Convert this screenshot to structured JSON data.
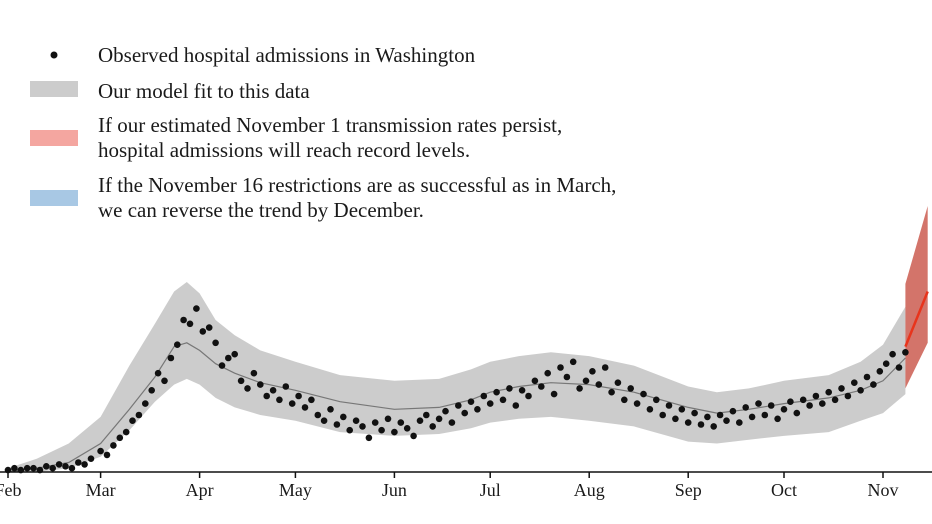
{
  "chart_data": {
    "type": "scatter",
    "title": "",
    "xlabel": "",
    "ylabel": "",
    "x_ticks": [
      "Feb",
      "Mar",
      "Apr",
      "May",
      "Jun",
      "Jul",
      "Aug",
      "Sep",
      "Oct",
      "Nov"
    ],
    "x_tick_dates": [
      "2020-02-01",
      "2020-03-01",
      "2020-04-01",
      "2020-05-01",
      "2020-06-01",
      "2020-07-01",
      "2020-08-01",
      "2020-09-01",
      "2020-10-01",
      "2020-11-01"
    ],
    "xlim": [
      "2020-02-01",
      "2020-11-15"
    ],
    "ylim": [
      0,
      100
    ],
    "y_axis_shown": false,
    "grid": false,
    "legend_position": "top-left",
    "colors": {
      "observed": "#111111",
      "model_band": "#cccccc",
      "model_line": "#777777",
      "red_band": "#c0392b",
      "red_line": "#e8341c",
      "red_legend": "#f4a6a0",
      "blue_legend": "#a8c8e4"
    },
    "legend": [
      {
        "key": "observed",
        "marker": "dot",
        "lines": [
          "Observed hospital admissions in Washington"
        ]
      },
      {
        "key": "model",
        "marker": "gray-patch",
        "lines": [
          "Our model fit to this data"
        ]
      },
      {
        "key": "persist",
        "marker": "red-patch",
        "lines": [
          "If our estimated November 1 transmission rates persist,",
          "hospital admissions will reach record levels."
        ]
      },
      {
        "key": "restrict",
        "marker": "blue-patch",
        "lines": [
          "If the November 16 restrictions are as successful as in March,",
          "we can reverse the trend by December."
        ]
      }
    ],
    "model_fit": [
      {
        "date": "2020-02-01",
        "y": 0
      },
      {
        "date": "2020-02-10",
        "y": 2
      },
      {
        "date": "2020-02-20",
        "y": 5
      },
      {
        "date": "2020-03-01",
        "y": 15
      },
      {
        "date": "2020-03-10",
        "y": 33
      },
      {
        "date": "2020-03-18",
        "y": 50
      },
      {
        "date": "2020-03-24",
        "y": 66
      },
      {
        "date": "2020-03-28",
        "y": 68
      },
      {
        "date": "2020-04-01",
        "y": 64
      },
      {
        "date": "2020-04-06",
        "y": 57
      },
      {
        "date": "2020-04-12",
        "y": 52
      },
      {
        "date": "2020-04-20",
        "y": 47
      },
      {
        "date": "2020-05-01",
        "y": 43
      },
      {
        "date": "2020-05-15",
        "y": 37
      },
      {
        "date": "2020-06-01",
        "y": 33
      },
      {
        "date": "2020-06-15",
        "y": 34
      },
      {
        "date": "2020-06-25",
        "y": 38
      },
      {
        "date": "2020-07-01",
        "y": 42
      },
      {
        "date": "2020-07-10",
        "y": 45
      },
      {
        "date": "2020-07-20",
        "y": 47
      },
      {
        "date": "2020-08-01",
        "y": 46
      },
      {
        "date": "2020-08-15",
        "y": 42
      },
      {
        "date": "2020-09-01",
        "y": 34
      },
      {
        "date": "2020-09-10",
        "y": 31
      },
      {
        "date": "2020-09-20",
        "y": 33
      },
      {
        "date": "2020-10-01",
        "y": 36
      },
      {
        "date": "2020-10-15",
        "y": 39
      },
      {
        "date": "2020-10-25",
        "y": 43
      },
      {
        "date": "2020-11-01",
        "y": 48
      },
      {
        "date": "2020-11-08",
        "y": 60
      }
    ],
    "model_band": [
      {
        "date": "2020-02-01",
        "lo": 0,
        "hi": 2
      },
      {
        "date": "2020-02-10",
        "lo": 0,
        "hi": 7
      },
      {
        "date": "2020-02-20",
        "lo": 2,
        "hi": 15
      },
      {
        "date": "2020-03-01",
        "lo": 8,
        "hi": 29
      },
      {
        "date": "2020-03-10",
        "lo": 22,
        "hi": 56
      },
      {
        "date": "2020-03-18",
        "lo": 37,
        "hi": 78
      },
      {
        "date": "2020-03-24",
        "lo": 46,
        "hi": 95
      },
      {
        "date": "2020-03-28",
        "lo": 49,
        "hi": 100
      },
      {
        "date": "2020-04-01",
        "lo": 46,
        "hi": 94
      },
      {
        "date": "2020-04-06",
        "lo": 39,
        "hi": 80
      },
      {
        "date": "2020-04-12",
        "lo": 34,
        "hi": 72
      },
      {
        "date": "2020-04-20",
        "lo": 30,
        "hi": 64
      },
      {
        "date": "2020-05-01",
        "lo": 27,
        "hi": 58
      },
      {
        "date": "2020-05-15",
        "lo": 21,
        "hi": 51
      },
      {
        "date": "2020-06-01",
        "lo": 19,
        "hi": 48
      },
      {
        "date": "2020-06-15",
        "lo": 20,
        "hi": 49
      },
      {
        "date": "2020-06-25",
        "lo": 23,
        "hi": 54
      },
      {
        "date": "2020-07-01",
        "lo": 26,
        "hi": 58
      },
      {
        "date": "2020-07-10",
        "lo": 28,
        "hi": 61
      },
      {
        "date": "2020-07-20",
        "lo": 29,
        "hi": 63
      },
      {
        "date": "2020-08-01",
        "lo": 27,
        "hi": 61
      },
      {
        "date": "2020-08-15",
        "lo": 24,
        "hi": 56
      },
      {
        "date": "2020-09-01",
        "lo": 16,
        "hi": 45
      },
      {
        "date": "2020-09-10",
        "lo": 15,
        "hi": 42
      },
      {
        "date": "2020-09-20",
        "lo": 17,
        "hi": 44
      },
      {
        "date": "2020-10-01",
        "lo": 19,
        "hi": 48
      },
      {
        "date": "2020-10-15",
        "lo": 21,
        "hi": 51
      },
      {
        "date": "2020-10-25",
        "lo": 27,
        "hi": 58
      },
      {
        "date": "2020-11-01",
        "lo": 31,
        "hi": 67
      },
      {
        "date": "2020-11-08",
        "lo": 41,
        "hi": 87
      }
    ],
    "projection_persist": {
      "line": [
        {
          "date": "2020-11-08",
          "y": 66
        },
        {
          "date": "2020-11-15",
          "y": 95
        }
      ],
      "band": [
        {
          "date": "2020-11-08",
          "lo": 44,
          "hi": 99
        },
        {
          "date": "2020-11-15",
          "lo": 68,
          "hi": 140
        }
      ]
    },
    "observed": [
      {
        "date": "2020-02-01",
        "y": 1
      },
      {
        "date": "2020-02-03",
        "y": 2
      },
      {
        "date": "2020-02-05",
        "y": 1
      },
      {
        "date": "2020-02-07",
        "y": 2
      },
      {
        "date": "2020-02-09",
        "y": 2
      },
      {
        "date": "2020-02-11",
        "y": 1
      },
      {
        "date": "2020-02-13",
        "y": 3
      },
      {
        "date": "2020-02-15",
        "y": 2
      },
      {
        "date": "2020-02-17",
        "y": 4
      },
      {
        "date": "2020-02-19",
        "y": 3
      },
      {
        "date": "2020-02-21",
        "y": 2
      },
      {
        "date": "2020-02-23",
        "y": 5
      },
      {
        "date": "2020-02-25",
        "y": 4
      },
      {
        "date": "2020-02-27",
        "y": 7
      },
      {
        "date": "2020-03-01",
        "y": 11
      },
      {
        "date": "2020-03-03",
        "y": 9
      },
      {
        "date": "2020-03-05",
        "y": 14
      },
      {
        "date": "2020-03-07",
        "y": 18
      },
      {
        "date": "2020-03-09",
        "y": 21
      },
      {
        "date": "2020-03-11",
        "y": 27
      },
      {
        "date": "2020-03-13",
        "y": 30
      },
      {
        "date": "2020-03-15",
        "y": 36
      },
      {
        "date": "2020-03-17",
        "y": 43
      },
      {
        "date": "2020-03-19",
        "y": 52
      },
      {
        "date": "2020-03-21",
        "y": 48
      },
      {
        "date": "2020-03-23",
        "y": 60
      },
      {
        "date": "2020-03-25",
        "y": 67
      },
      {
        "date": "2020-03-27",
        "y": 80
      },
      {
        "date": "2020-03-29",
        "y": 78
      },
      {
        "date": "2020-03-31",
        "y": 86
      },
      {
        "date": "2020-04-02",
        "y": 74
      },
      {
        "date": "2020-04-04",
        "y": 76
      },
      {
        "date": "2020-04-06",
        "y": 68
      },
      {
        "date": "2020-04-08",
        "y": 56
      },
      {
        "date": "2020-04-10",
        "y": 60
      },
      {
        "date": "2020-04-12",
        "y": 62
      },
      {
        "date": "2020-04-14",
        "y": 48
      },
      {
        "date": "2020-04-16",
        "y": 44
      },
      {
        "date": "2020-04-18",
        "y": 52
      },
      {
        "date": "2020-04-20",
        "y": 46
      },
      {
        "date": "2020-04-22",
        "y": 40
      },
      {
        "date": "2020-04-24",
        "y": 43
      },
      {
        "date": "2020-04-26",
        "y": 38
      },
      {
        "date": "2020-04-28",
        "y": 45
      },
      {
        "date": "2020-04-30",
        "y": 36
      },
      {
        "date": "2020-05-02",
        "y": 40
      },
      {
        "date": "2020-05-04",
        "y": 34
      },
      {
        "date": "2020-05-06",
        "y": 38
      },
      {
        "date": "2020-05-08",
        "y": 30
      },
      {
        "date": "2020-05-10",
        "y": 27
      },
      {
        "date": "2020-05-12",
        "y": 33
      },
      {
        "date": "2020-05-14",
        "y": 25
      },
      {
        "date": "2020-05-16",
        "y": 29
      },
      {
        "date": "2020-05-18",
        "y": 22
      },
      {
        "date": "2020-05-20",
        "y": 27
      },
      {
        "date": "2020-05-22",
        "y": 24
      },
      {
        "date": "2020-05-24",
        "y": 18
      },
      {
        "date": "2020-05-26",
        "y": 26
      },
      {
        "date": "2020-05-28",
        "y": 22
      },
      {
        "date": "2020-05-30",
        "y": 28
      },
      {
        "date": "2020-06-01",
        "y": 21
      },
      {
        "date": "2020-06-03",
        "y": 26
      },
      {
        "date": "2020-06-05",
        "y": 23
      },
      {
        "date": "2020-06-07",
        "y": 19
      },
      {
        "date": "2020-06-09",
        "y": 27
      },
      {
        "date": "2020-06-11",
        "y": 30
      },
      {
        "date": "2020-06-13",
        "y": 24
      },
      {
        "date": "2020-06-15",
        "y": 28
      },
      {
        "date": "2020-06-17",
        "y": 32
      },
      {
        "date": "2020-06-19",
        "y": 26
      },
      {
        "date": "2020-06-21",
        "y": 35
      },
      {
        "date": "2020-06-23",
        "y": 31
      },
      {
        "date": "2020-06-25",
        "y": 37
      },
      {
        "date": "2020-06-27",
        "y": 33
      },
      {
        "date": "2020-06-29",
        "y": 40
      },
      {
        "date": "2020-07-01",
        "y": 36
      },
      {
        "date": "2020-07-03",
        "y": 42
      },
      {
        "date": "2020-07-05",
        "y": 38
      },
      {
        "date": "2020-07-07",
        "y": 44
      },
      {
        "date": "2020-07-09",
        "y": 35
      },
      {
        "date": "2020-07-11",
        "y": 43
      },
      {
        "date": "2020-07-13",
        "y": 40
      },
      {
        "date": "2020-07-15",
        "y": 48
      },
      {
        "date": "2020-07-17",
        "y": 45
      },
      {
        "date": "2020-07-19",
        "y": 52
      },
      {
        "date": "2020-07-21",
        "y": 41
      },
      {
        "date": "2020-07-23",
        "y": 55
      },
      {
        "date": "2020-07-25",
        "y": 50
      },
      {
        "date": "2020-07-27",
        "y": 58
      },
      {
        "date": "2020-07-29",
        "y": 44
      },
      {
        "date": "2020-07-31",
        "y": 48
      },
      {
        "date": "2020-08-02",
        "y": 53
      },
      {
        "date": "2020-08-04",
        "y": 46
      },
      {
        "date": "2020-08-06",
        "y": 55
      },
      {
        "date": "2020-08-08",
        "y": 42
      },
      {
        "date": "2020-08-10",
        "y": 47
      },
      {
        "date": "2020-08-12",
        "y": 38
      },
      {
        "date": "2020-08-14",
        "y": 44
      },
      {
        "date": "2020-08-16",
        "y": 36
      },
      {
        "date": "2020-08-18",
        "y": 41
      },
      {
        "date": "2020-08-20",
        "y": 33
      },
      {
        "date": "2020-08-22",
        "y": 38
      },
      {
        "date": "2020-08-24",
        "y": 30
      },
      {
        "date": "2020-08-26",
        "y": 35
      },
      {
        "date": "2020-08-28",
        "y": 28
      },
      {
        "date": "2020-08-30",
        "y": 33
      },
      {
        "date": "2020-09-01",
        "y": 26
      },
      {
        "date": "2020-09-03",
        "y": 31
      },
      {
        "date": "2020-09-05",
        "y": 25
      },
      {
        "date": "2020-09-07",
        "y": 29
      },
      {
        "date": "2020-09-09",
        "y": 24
      },
      {
        "date": "2020-09-11",
        "y": 30
      },
      {
        "date": "2020-09-13",
        "y": 27
      },
      {
        "date": "2020-09-15",
        "y": 32
      },
      {
        "date": "2020-09-17",
        "y": 26
      },
      {
        "date": "2020-09-19",
        "y": 34
      },
      {
        "date": "2020-09-21",
        "y": 29
      },
      {
        "date": "2020-09-23",
        "y": 36
      },
      {
        "date": "2020-09-25",
        "y": 30
      },
      {
        "date": "2020-09-27",
        "y": 35
      },
      {
        "date": "2020-09-29",
        "y": 28
      },
      {
        "date": "2020-10-01",
        "y": 33
      },
      {
        "date": "2020-10-03",
        "y": 37
      },
      {
        "date": "2020-10-05",
        "y": 31
      },
      {
        "date": "2020-10-07",
        "y": 38
      },
      {
        "date": "2020-10-09",
        "y": 35
      },
      {
        "date": "2020-10-11",
        "y": 40
      },
      {
        "date": "2020-10-13",
        "y": 36
      },
      {
        "date": "2020-10-15",
        "y": 42
      },
      {
        "date": "2020-10-17",
        "y": 38
      },
      {
        "date": "2020-10-19",
        "y": 44
      },
      {
        "date": "2020-10-21",
        "y": 40
      },
      {
        "date": "2020-10-23",
        "y": 47
      },
      {
        "date": "2020-10-25",
        "y": 43
      },
      {
        "date": "2020-10-27",
        "y": 50
      },
      {
        "date": "2020-10-29",
        "y": 46
      },
      {
        "date": "2020-10-31",
        "y": 53
      },
      {
        "date": "2020-11-02",
        "y": 57
      },
      {
        "date": "2020-11-04",
        "y": 62
      },
      {
        "date": "2020-11-06",
        "y": 55
      },
      {
        "date": "2020-11-08",
        "y": 63
      }
    ]
  }
}
